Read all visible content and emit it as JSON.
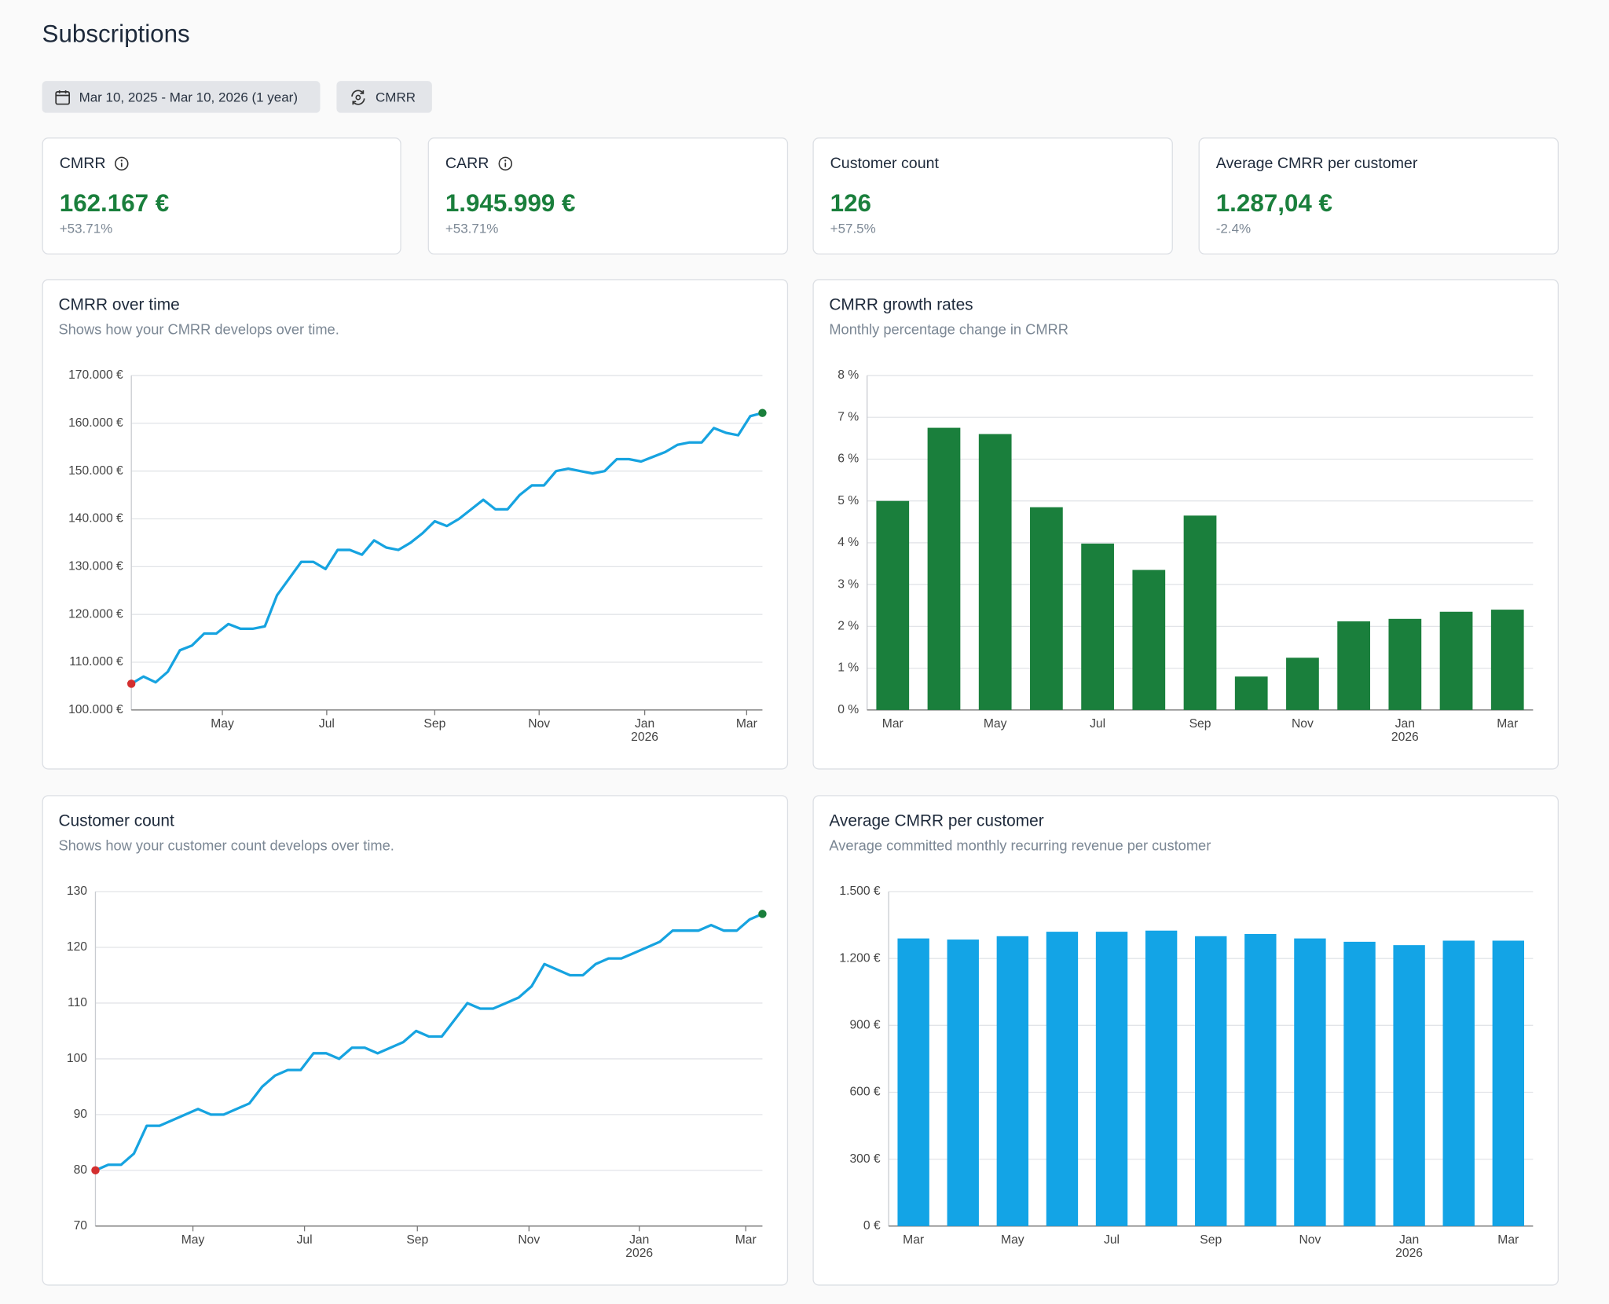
{
  "header": {
    "title": "Subscriptions"
  },
  "filters": {
    "date_range": "Mar 10, 2025 - Mar 10, 2026 (1 year)",
    "metric": "CMRR"
  },
  "kpis": [
    {
      "label": "CMRR",
      "value": "162.167 €",
      "change": "+53.71%",
      "info": true
    },
    {
      "label": "CARR",
      "value": "1.945.999 €",
      "change": "+53.71%",
      "info": true
    },
    {
      "label": "Customer count",
      "value": "126",
      "change": "+57.5%",
      "info": false
    },
    {
      "label": "Average CMRR per customer",
      "value": "1.287,04 €",
      "change": "-2.4%",
      "info": false
    }
  ],
  "chart_data": [
    {
      "type": "line",
      "title": "CMRR over time",
      "subtitle": "Shows how your CMRR develops over time.",
      "values": [
        105500,
        107000,
        105800,
        108000,
        112500,
        113500,
        116000,
        116000,
        118000,
        117000,
        117000,
        117500,
        124000,
        127500,
        131000,
        131000,
        129500,
        133500,
        133500,
        132500,
        135500,
        134000,
        133500,
        135000,
        137000,
        139500,
        138500,
        140000,
        142000,
        144000,
        142000,
        142000,
        145000,
        147000,
        147000,
        150000,
        150500,
        150000,
        149500,
        150000,
        152500,
        152500,
        152000,
        153000,
        154000,
        155500,
        156000,
        156000,
        159000,
        158000,
        157500,
        161500,
        162167
      ],
      "color": "#16a3e0",
      "start_marker_color": "#d32f2f",
      "end_marker_color": "#1a7f3c",
      "xlim": [
        0,
        52
      ],
      "xticks": [
        {
          "value": 7.5,
          "label": "May"
        },
        {
          "value": 16.1,
          "label": "Jul"
        },
        {
          "value": 25,
          "label": "Sep"
        },
        {
          "value": 33.6,
          "label": "Nov"
        },
        {
          "value": 42.3,
          "label": "Jan"
        },
        {
          "value": 50.7,
          "label": "Mar"
        }
      ],
      "xyear": {
        "value": 42.3,
        "label": "2026"
      },
      "ylim": [
        100000,
        170000
      ],
      "yticks": [
        {
          "value": 100000,
          "label": "100.000 €"
        },
        {
          "value": 110000,
          "label": "110.000 €"
        },
        {
          "value": 120000,
          "label": "120.000 €"
        },
        {
          "value": 130000,
          "label": "130.000 €"
        },
        {
          "value": 140000,
          "label": "140.000 €"
        },
        {
          "value": 150000,
          "label": "150.000 €"
        },
        {
          "value": 160000,
          "label": "160.000 €"
        },
        {
          "value": 170000,
          "label": "170.000 €"
        }
      ],
      "grid": true
    },
    {
      "type": "bar",
      "title": "CMRR growth rates",
      "subtitle": "Monthly percentage change in CMRR",
      "categories": [
        "Mar",
        null,
        "May",
        null,
        "Jul",
        null,
        "Sep",
        null,
        "Nov",
        null,
        "Jan",
        null,
        "Mar"
      ],
      "values": [
        5.0,
        6.75,
        6.6,
        4.85,
        3.98,
        3.35,
        4.65,
        0.8,
        1.25,
        2.12,
        2.18,
        2.35,
        2.4
      ],
      "xyear": {
        "value": 10,
        "label": "2026"
      },
      "color": "#1a7f3c",
      "ylim": [
        0,
        8
      ],
      "yticks": [
        {
          "value": 0,
          "label": "0 %"
        },
        {
          "value": 1,
          "label": "1 %"
        },
        {
          "value": 2,
          "label": "2 %"
        },
        {
          "value": 3,
          "label": "3 %"
        },
        {
          "value": 4,
          "label": "4 %"
        },
        {
          "value": 5,
          "label": "5 %"
        },
        {
          "value": 6,
          "label": "6 %"
        },
        {
          "value": 7,
          "label": "7 %"
        },
        {
          "value": 8,
          "label": "8 %"
        }
      ],
      "grid": true
    },
    {
      "type": "line",
      "title": "Customer count",
      "subtitle": "Shows how your customer count develops over time.",
      "values": [
        80,
        81,
        81,
        83,
        88,
        88,
        89,
        90,
        91,
        90,
        90,
        91,
        92,
        95,
        97,
        98,
        98,
        101,
        101,
        100,
        102,
        102,
        101,
        102,
        103,
        105,
        104,
        104,
        107,
        110,
        109,
        109,
        110,
        111,
        113,
        117,
        116,
        115,
        115,
        117,
        118,
        118,
        119,
        120,
        121,
        123,
        123,
        123,
        124,
        123,
        123,
        125,
        126
      ],
      "color": "#16a3e0",
      "start_marker_color": "#d32f2f",
      "end_marker_color": "#1a7f3c",
      "xlim": [
        0,
        52
      ],
      "xticks": [
        {
          "value": 7.6,
          "label": "May"
        },
        {
          "value": 16.3,
          "label": "Jul"
        },
        {
          "value": 25.1,
          "label": "Sep"
        },
        {
          "value": 33.8,
          "label": "Nov"
        },
        {
          "value": 42.4,
          "label": "Jan"
        },
        {
          "value": 50.7,
          "label": "Mar"
        }
      ],
      "xyear": {
        "value": 42.4,
        "label": "2026"
      },
      "ylim": [
        70,
        130
      ],
      "yticks": [
        70,
        80,
        90,
        100,
        110,
        120,
        130
      ],
      "grid": true
    },
    {
      "type": "bar",
      "title": "Average CMRR per customer",
      "subtitle": "Average committed monthly recurring revenue per customer",
      "categories": [
        "Mar",
        null,
        "May",
        null,
        "Jul",
        null,
        "Sep",
        null,
        "Nov",
        null,
        "Jan",
        null,
        "Mar"
      ],
      "values": [
        1290,
        1285,
        1300,
        1320,
        1320,
        1325,
        1300,
        1310,
        1290,
        1275,
        1260,
        1280,
        1280
      ],
      "xyear": {
        "value": 10,
        "label": "2026"
      },
      "color": "#13a4e6",
      "ylim": [
        0,
        1500
      ],
      "yticks": [
        {
          "value": 0,
          "label": "0 €"
        },
        {
          "value": 300,
          "label": "300 €"
        },
        {
          "value": 600,
          "label": "600 €"
        },
        {
          "value": 900,
          "label": "900 €"
        },
        {
          "value": 1200,
          "label": "1.200 €"
        },
        {
          "value": 1500,
          "label": "1.500 €"
        }
      ],
      "grid": true
    }
  ]
}
